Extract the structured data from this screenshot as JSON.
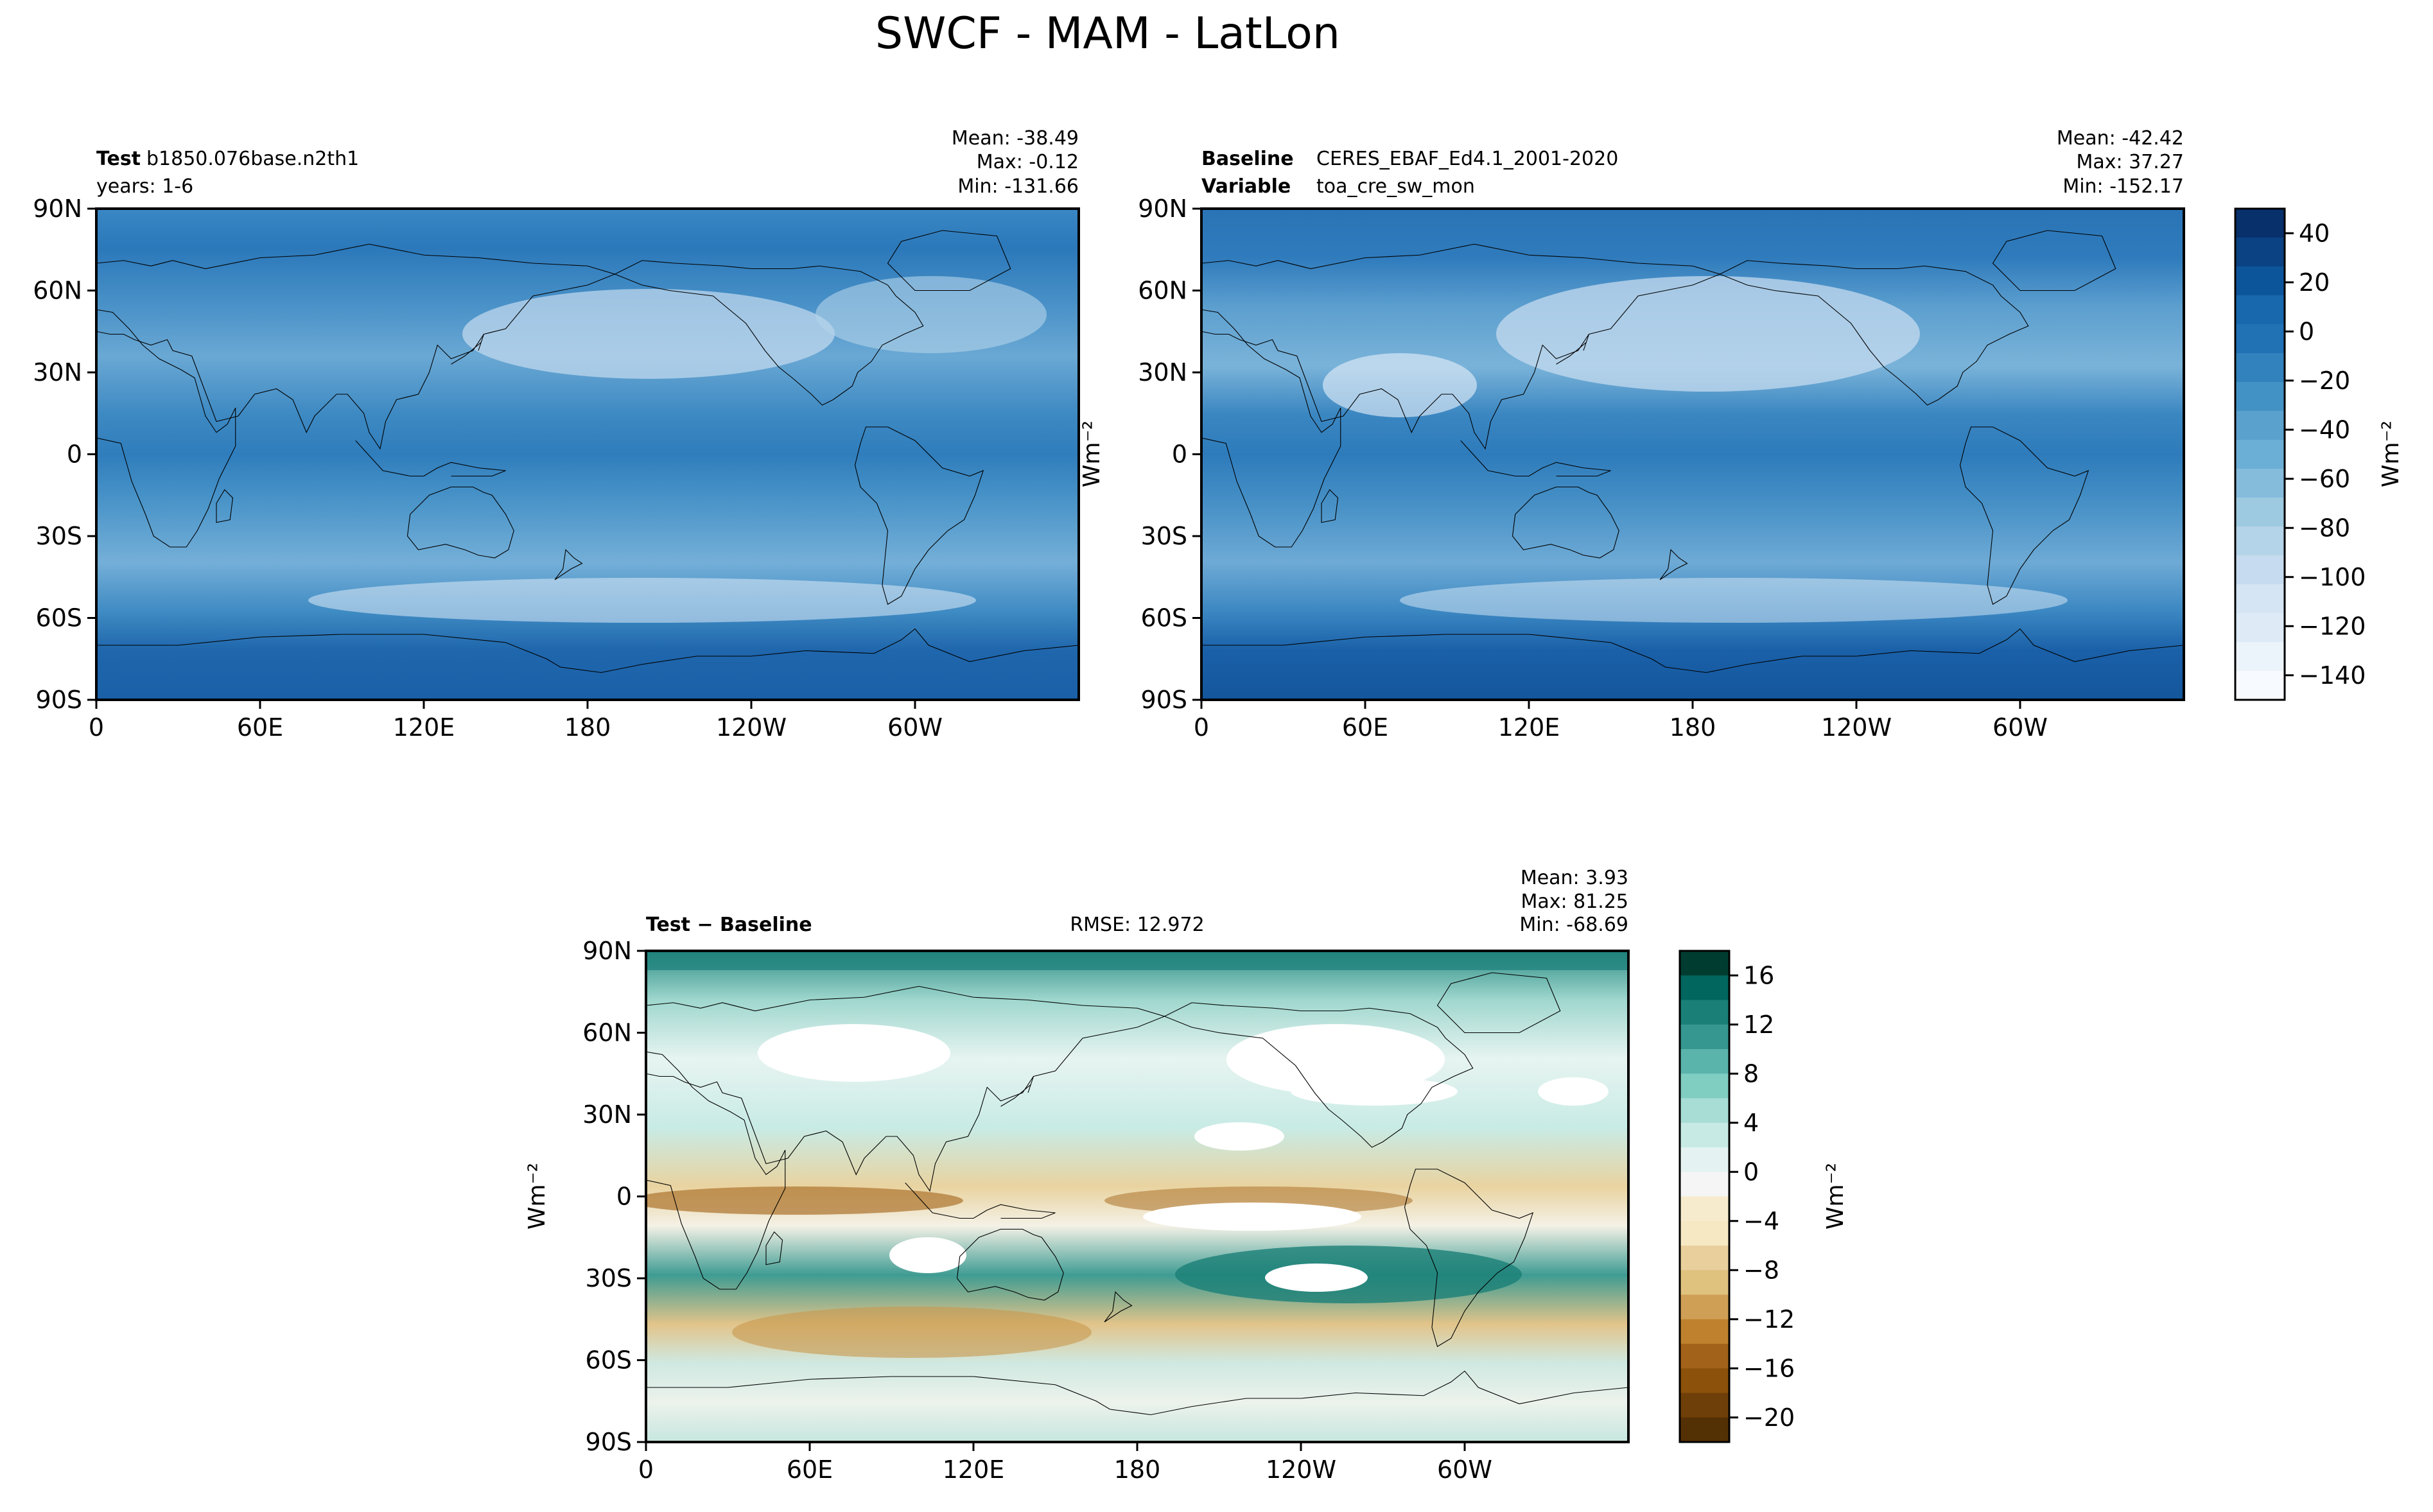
{
  "figure": {
    "title": "SWCF - MAM - LatLon"
  },
  "test_panel": {
    "label_bold": "Test",
    "label_value": "b1850.076base.n2th1",
    "years": "years: 1-6",
    "mean": "Mean: -38.49",
    "max": "Max: -0.12",
    "min": "Min: -131.66"
  },
  "baseline_panel": {
    "label_bold": "Baseline",
    "label_value": "CERES_EBAF_Ed4.1_2001-2020",
    "variable_bold": "Variable",
    "variable_value": "toa_cre_sw_mon",
    "mean": "Mean: -42.42",
    "max": "Max: 37.27",
    "min": "Min: -152.17",
    "ylabel": "Wm⁻²"
  },
  "diff_panel": {
    "label": "Test − Baseline",
    "rmse": "RMSE: 12.972",
    "mean": "Mean:  3.93",
    "max": "Max: 81.25",
    "min": "Min: -68.69",
    "ylabel": "Wm⁻²"
  },
  "colorbar_top": {
    "label": "Wm⁻²",
    "ticks": [
      "40",
      "20",
      "0",
      "−20",
      "−40",
      "−60",
      "−80",
      "−100",
      "−120",
      "−140"
    ],
    "colors": [
      "#08306b",
      "#0b4283",
      "#0d559b",
      "#1768ad",
      "#2171b5",
      "#3282bd",
      "#4292c6",
      "#5aa1ce",
      "#6baed6",
      "#85bcdc",
      "#9ecae1",
      "#b4d4e9",
      "#c6dbef",
      "#d5e5f4",
      "#deebf7",
      "#ebf3fb",
      "#f7fbff"
    ]
  },
  "colorbar_bottom": {
    "label": "Wm⁻²",
    "ticks": [
      "16",
      "12",
      "8",
      "4",
      "0",
      "−4",
      "−8",
      "−12",
      "−16",
      "−20"
    ],
    "colors": [
      "#003c30",
      "#01665e",
      "#1a7f77",
      "#35978f",
      "#5ab4ac",
      "#80cdc1",
      "#a7ddd5",
      "#c7eae5",
      "#e4f3f1",
      "#f5f5f5",
      "#f6ebcc",
      "#f6e8c3",
      "#e8cf9c",
      "#dfc27d",
      "#cf9f55",
      "#bf812d",
      "#a3621a",
      "#8c510a",
      "#6e3f08",
      "#543005"
    ]
  },
  "chart_data": [
    {
      "type": "heatmap",
      "title": "b1850.076base.n2th1",
      "x_ticks": [
        "0",
        "60E",
        "120E",
        "180",
        "120W",
        "60W"
      ],
      "y_ticks": [
        "90N",
        "60N",
        "30N",
        "0",
        "30S",
        "60S",
        "90S"
      ],
      "xlim": [
        0,
        360
      ],
      "ylim": [
        -90,
        90
      ],
      "mean": -38.49,
      "max": -0.12,
      "min": -131.66,
      "colorbar_range": [
        -150,
        40
      ]
    },
    {
      "type": "heatmap",
      "title": "CERES_EBAF_Ed4.1_2001-2020",
      "x_ticks": [
        "0",
        "60E",
        "120E",
        "180",
        "120W",
        "60W"
      ],
      "y_ticks": [
        "90N",
        "60N",
        "30N",
        "0",
        "30S",
        "60S",
        "90S"
      ],
      "xlim": [
        0,
        360
      ],
      "ylim": [
        -90,
        90
      ],
      "mean": -42.42,
      "max": 37.27,
      "min": -152.17,
      "colorbar_range": [
        -150,
        40
      ]
    },
    {
      "type": "heatmap",
      "title": "Test − Baseline",
      "x_ticks": [
        "0",
        "60E",
        "120E",
        "180",
        "120W",
        "60W"
      ],
      "y_ticks": [
        "90N",
        "60N",
        "30N",
        "0",
        "30S",
        "60S",
        "90S"
      ],
      "xlim": [
        0,
        360
      ],
      "ylim": [
        -90,
        90
      ],
      "mean": 3.93,
      "max": 81.25,
      "min": -68.69,
      "rmse": 12.972,
      "colorbar_range": [
        -20,
        18
      ]
    }
  ]
}
